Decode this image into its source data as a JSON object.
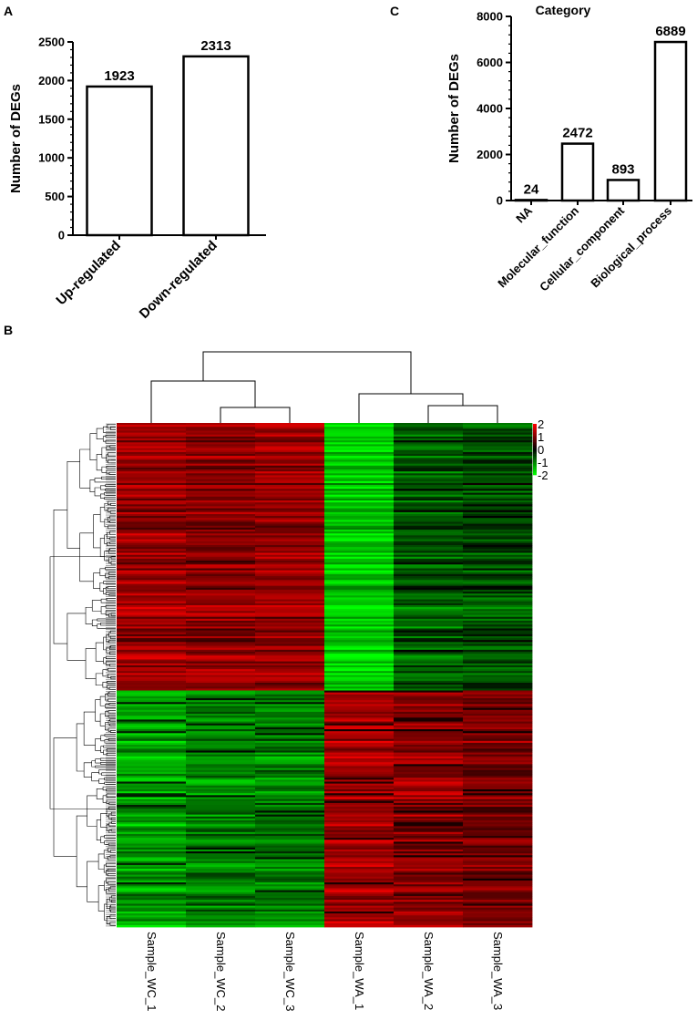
{
  "chart_data": [
    {
      "panel": "A",
      "type": "bar",
      "title": "",
      "xlabel": "",
      "ylabel": "Number of DEGs",
      "categories": [
        "Up-regulated",
        "Down-regulated"
      ],
      "values": [
        1923,
        2313
      ],
      "value_labels": [
        "1923",
        "2313"
      ],
      "ylim": [
        0,
        2500
      ],
      "yticks": [
        0,
        500,
        1000,
        1500,
        2000,
        2500
      ],
      "ytick_labels": [
        "0",
        "500",
        "1000",
        "1500",
        "2000",
        "2500"
      ],
      "bar_fill": "#ffffff",
      "bar_stroke": "#000000",
      "grid": false
    },
    {
      "panel": "C",
      "type": "bar",
      "title": "Category",
      "xlabel": "",
      "ylabel": "Number of DEGs",
      "categories": [
        "NA",
        "Molecular_function",
        "Cellular_component",
        "Biological_process"
      ],
      "values": [
        24,
        2472,
        893,
        6889
      ],
      "value_labels": [
        "24",
        "2472",
        "893",
        "6889"
      ],
      "ylim": [
        0,
        8000
      ],
      "yticks": [
        0,
        2000,
        4000,
        6000,
        8000
      ],
      "ytick_labels": [
        "0",
        "2000",
        "4000",
        "6000",
        "8000"
      ],
      "bar_fill": "#ffffff",
      "bar_stroke": "#000000",
      "grid": false
    },
    {
      "panel": "B",
      "type": "heatmap",
      "title": "",
      "columns": [
        "Sample_WC_1",
        "Sample_WC_2",
        "Sample_WC_3",
        "Sample_WA_1",
        "Sample_WA_2",
        "Sample_WA_3"
      ],
      "column_order_groups": [
        [
          "Sample_WC_1",
          [
            "Sample_WC_2",
            "Sample_WC_3"
          ]
        ],
        [
          "Sample_WA_1",
          [
            "Sample_WA_2",
            "Sample_WA_3"
          ]
        ]
      ],
      "row_clusters": [
        {
          "name": "upper",
          "rows_fraction": 0.53,
          "values": [
            1.2,
            1.1,
            1.2,
            -1.6,
            -0.7,
            -0.6
          ]
        },
        {
          "name": "lower",
          "rows_fraction": 0.47,
          "values": [
            -1.3,
            -1.0,
            -1.0,
            1.3,
            1.1,
            0.9
          ]
        }
      ],
      "color_scale": {
        "min": -2,
        "max": 2,
        "low": "#00ff00",
        "mid": "#000000",
        "high": "#ff0000"
      },
      "legend_ticks": [
        "2",
        "1",
        "0",
        "-1",
        "-2"
      ],
      "row_dendrogram": true,
      "column_dendrogram": true
    }
  ],
  "panels": {
    "a_letter": "A",
    "b_letter": "B",
    "c_letter": "C"
  }
}
